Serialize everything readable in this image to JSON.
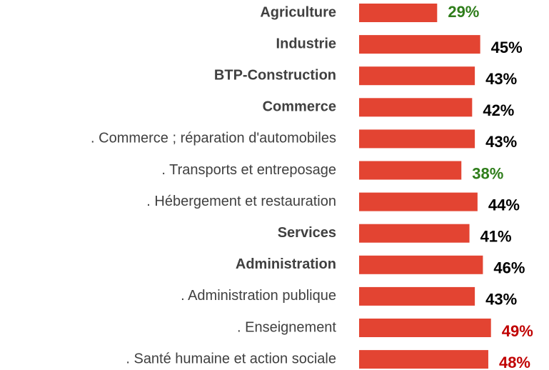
{
  "chart_data": {
    "type": "bar",
    "orientation": "horizontal",
    "categories": [
      "Agriculture",
      "Industrie",
      "BTP-Construction",
      "Commerce",
      ". Commerce ; réparation d'automobiles",
      ". Transports et entreposage",
      ". Hébergement et restauration",
      "Services",
      "Administration",
      ". Administration publique",
      ". Enseignement",
      ". Santé humaine et action sociale"
    ],
    "category_bold": [
      true,
      true,
      true,
      true,
      false,
      false,
      false,
      true,
      true,
      false,
      false,
      false
    ],
    "values": [
      29,
      45,
      43,
      42,
      43,
      38,
      44,
      41,
      46,
      43,
      49,
      48
    ],
    "value_labels": [
      "29%",
      "45%",
      "43%",
      "42%",
      "43%",
      "38%",
      "44%",
      "41%",
      "46%",
      "43%",
      "49%",
      "48%"
    ],
    "value_label_colors": [
      "#2e7d1a",
      "#000000",
      "#000000",
      "#000000",
      "#000000",
      "#2e7d1a",
      "#000000",
      "#000000",
      "#000000",
      "#000000",
      "#c00000",
      "#c00000"
    ],
    "color": "#e34432"
  }
}
